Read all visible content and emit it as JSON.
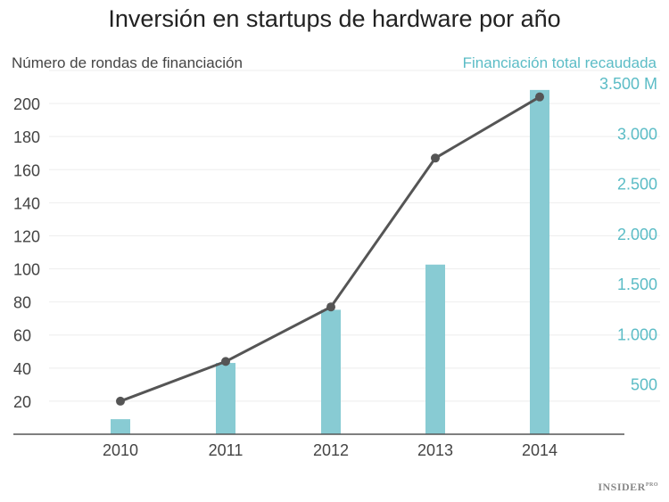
{
  "chart_data": {
    "type": "bar+line",
    "title": "Inversión en startups de hardware por año",
    "ylabel": "Número de rondas de financiación",
    "y2label": "Financiación total recaudada",
    "categories": [
      "2010",
      "2011",
      "2012",
      "2013",
      "2014"
    ],
    "series": [
      {
        "name": "Financiación total recaudada",
        "type": "bar",
        "axis": "right",
        "values": [
          150,
          710,
          1240,
          1690,
          3430
        ]
      },
      {
        "name": "Número de rondas de financiación",
        "type": "line",
        "axis": "left",
        "values": [
          20,
          44,
          77,
          167,
          204
        ]
      }
    ],
    "yticks": [
      "20",
      "40",
      "60",
      "80",
      "100",
      "120",
      "140",
      "160",
      "180",
      "200"
    ],
    "y2ticks": [
      "500",
      "1.000",
      "1.500",
      "2.000",
      "2.500",
      "3.000",
      "3.500 M"
    ],
    "ylim": [
      0,
      220
    ],
    "y2lim": [
      0,
      3500
    ],
    "grid": true,
    "colors": {
      "bar": "#88cbd3",
      "line": "#555555",
      "right_axis": "#5bbcc6"
    }
  },
  "logo": {
    "text": "INSIDER",
    "suffix": "PRO"
  }
}
